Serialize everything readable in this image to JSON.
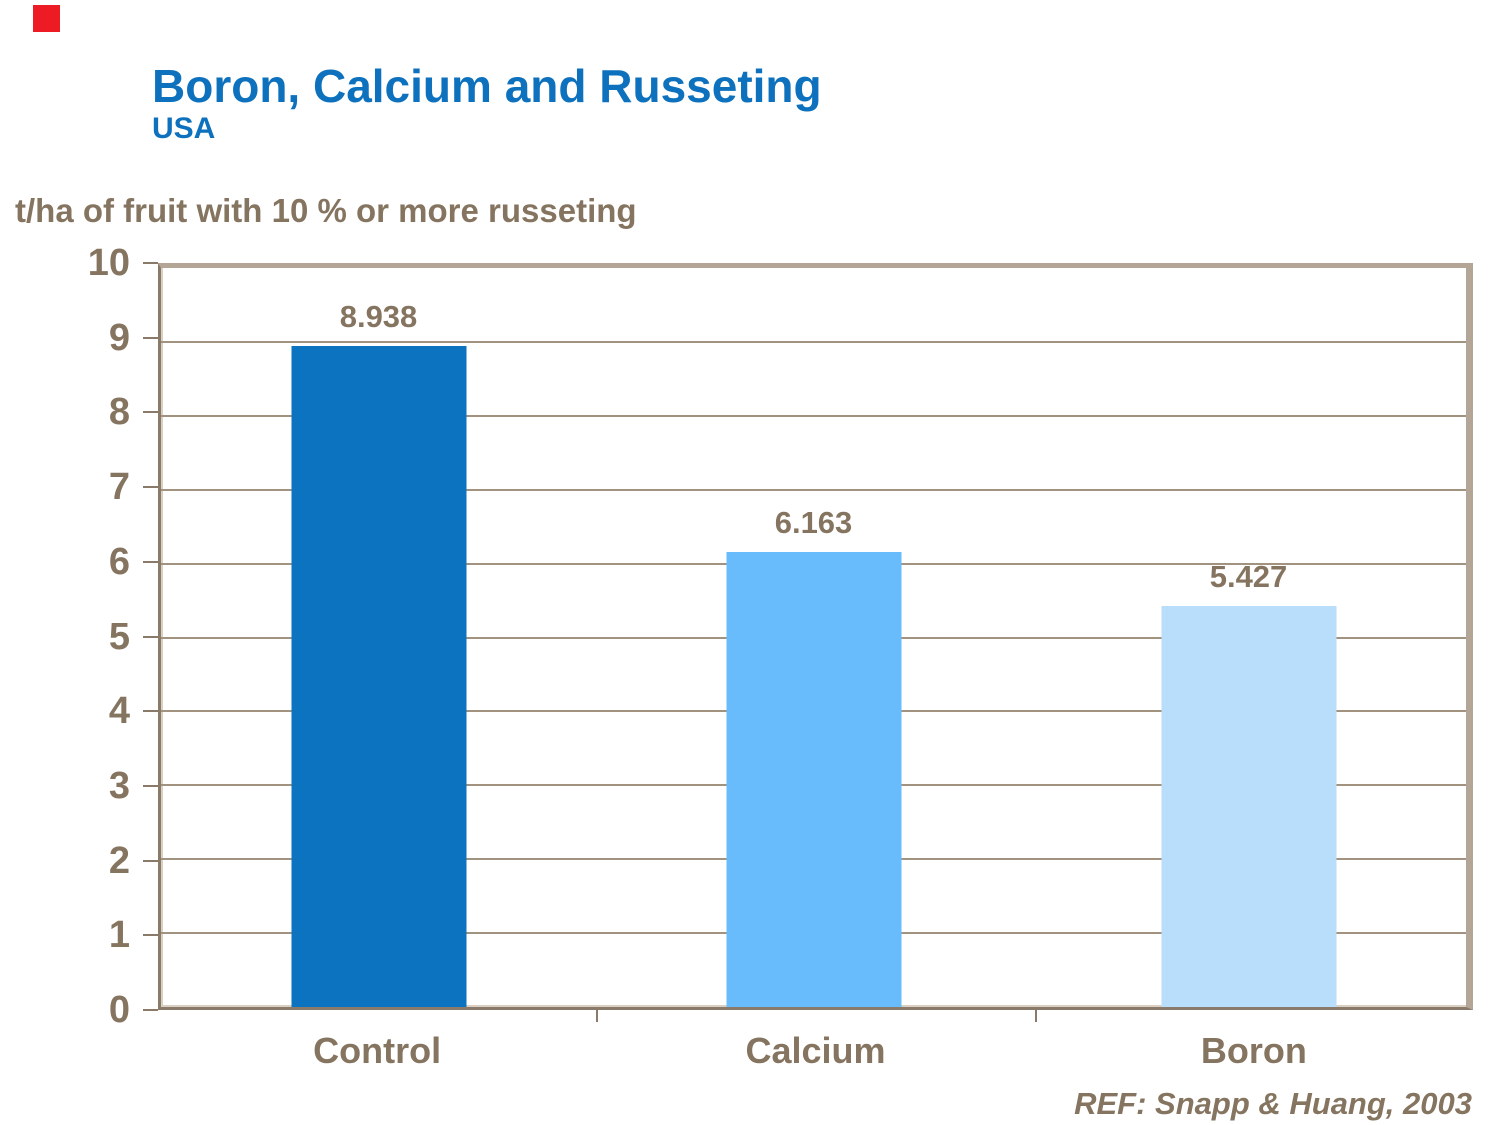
{
  "header": {
    "title": "Boron, Calcium and Russeting",
    "subtitle": "USA",
    "title_color": "#0d71bd"
  },
  "logo": {
    "shape": "red-square",
    "color": "#ed1c24"
  },
  "chart_data": {
    "type": "bar",
    "title": "t/ha of fruit with 10 % or more russeting",
    "categories": [
      "Control",
      "Calcium",
      "Boron"
    ],
    "values": [
      8.938,
      6.163,
      5.427
    ],
    "value_labels": [
      "8.938",
      "6.163",
      "5.427"
    ],
    "bar_colors": [
      "#0b73c0",
      "#69bcfb",
      "#b9defb"
    ],
    "ylim": [
      0,
      10
    ],
    "yticks": [
      0,
      1,
      2,
      3,
      4,
      5,
      6,
      7,
      8,
      9,
      10
    ],
    "xlabel": "",
    "ylabel": "t/ha of fruit with 10 % or more russeting",
    "grid": true,
    "legend_position": "none",
    "text_color": "#857560",
    "grid_color": "#a1937f",
    "axis_color": "#8a7a69"
  },
  "footer": {
    "reference": "REF: Snapp & Huang, 2003"
  }
}
